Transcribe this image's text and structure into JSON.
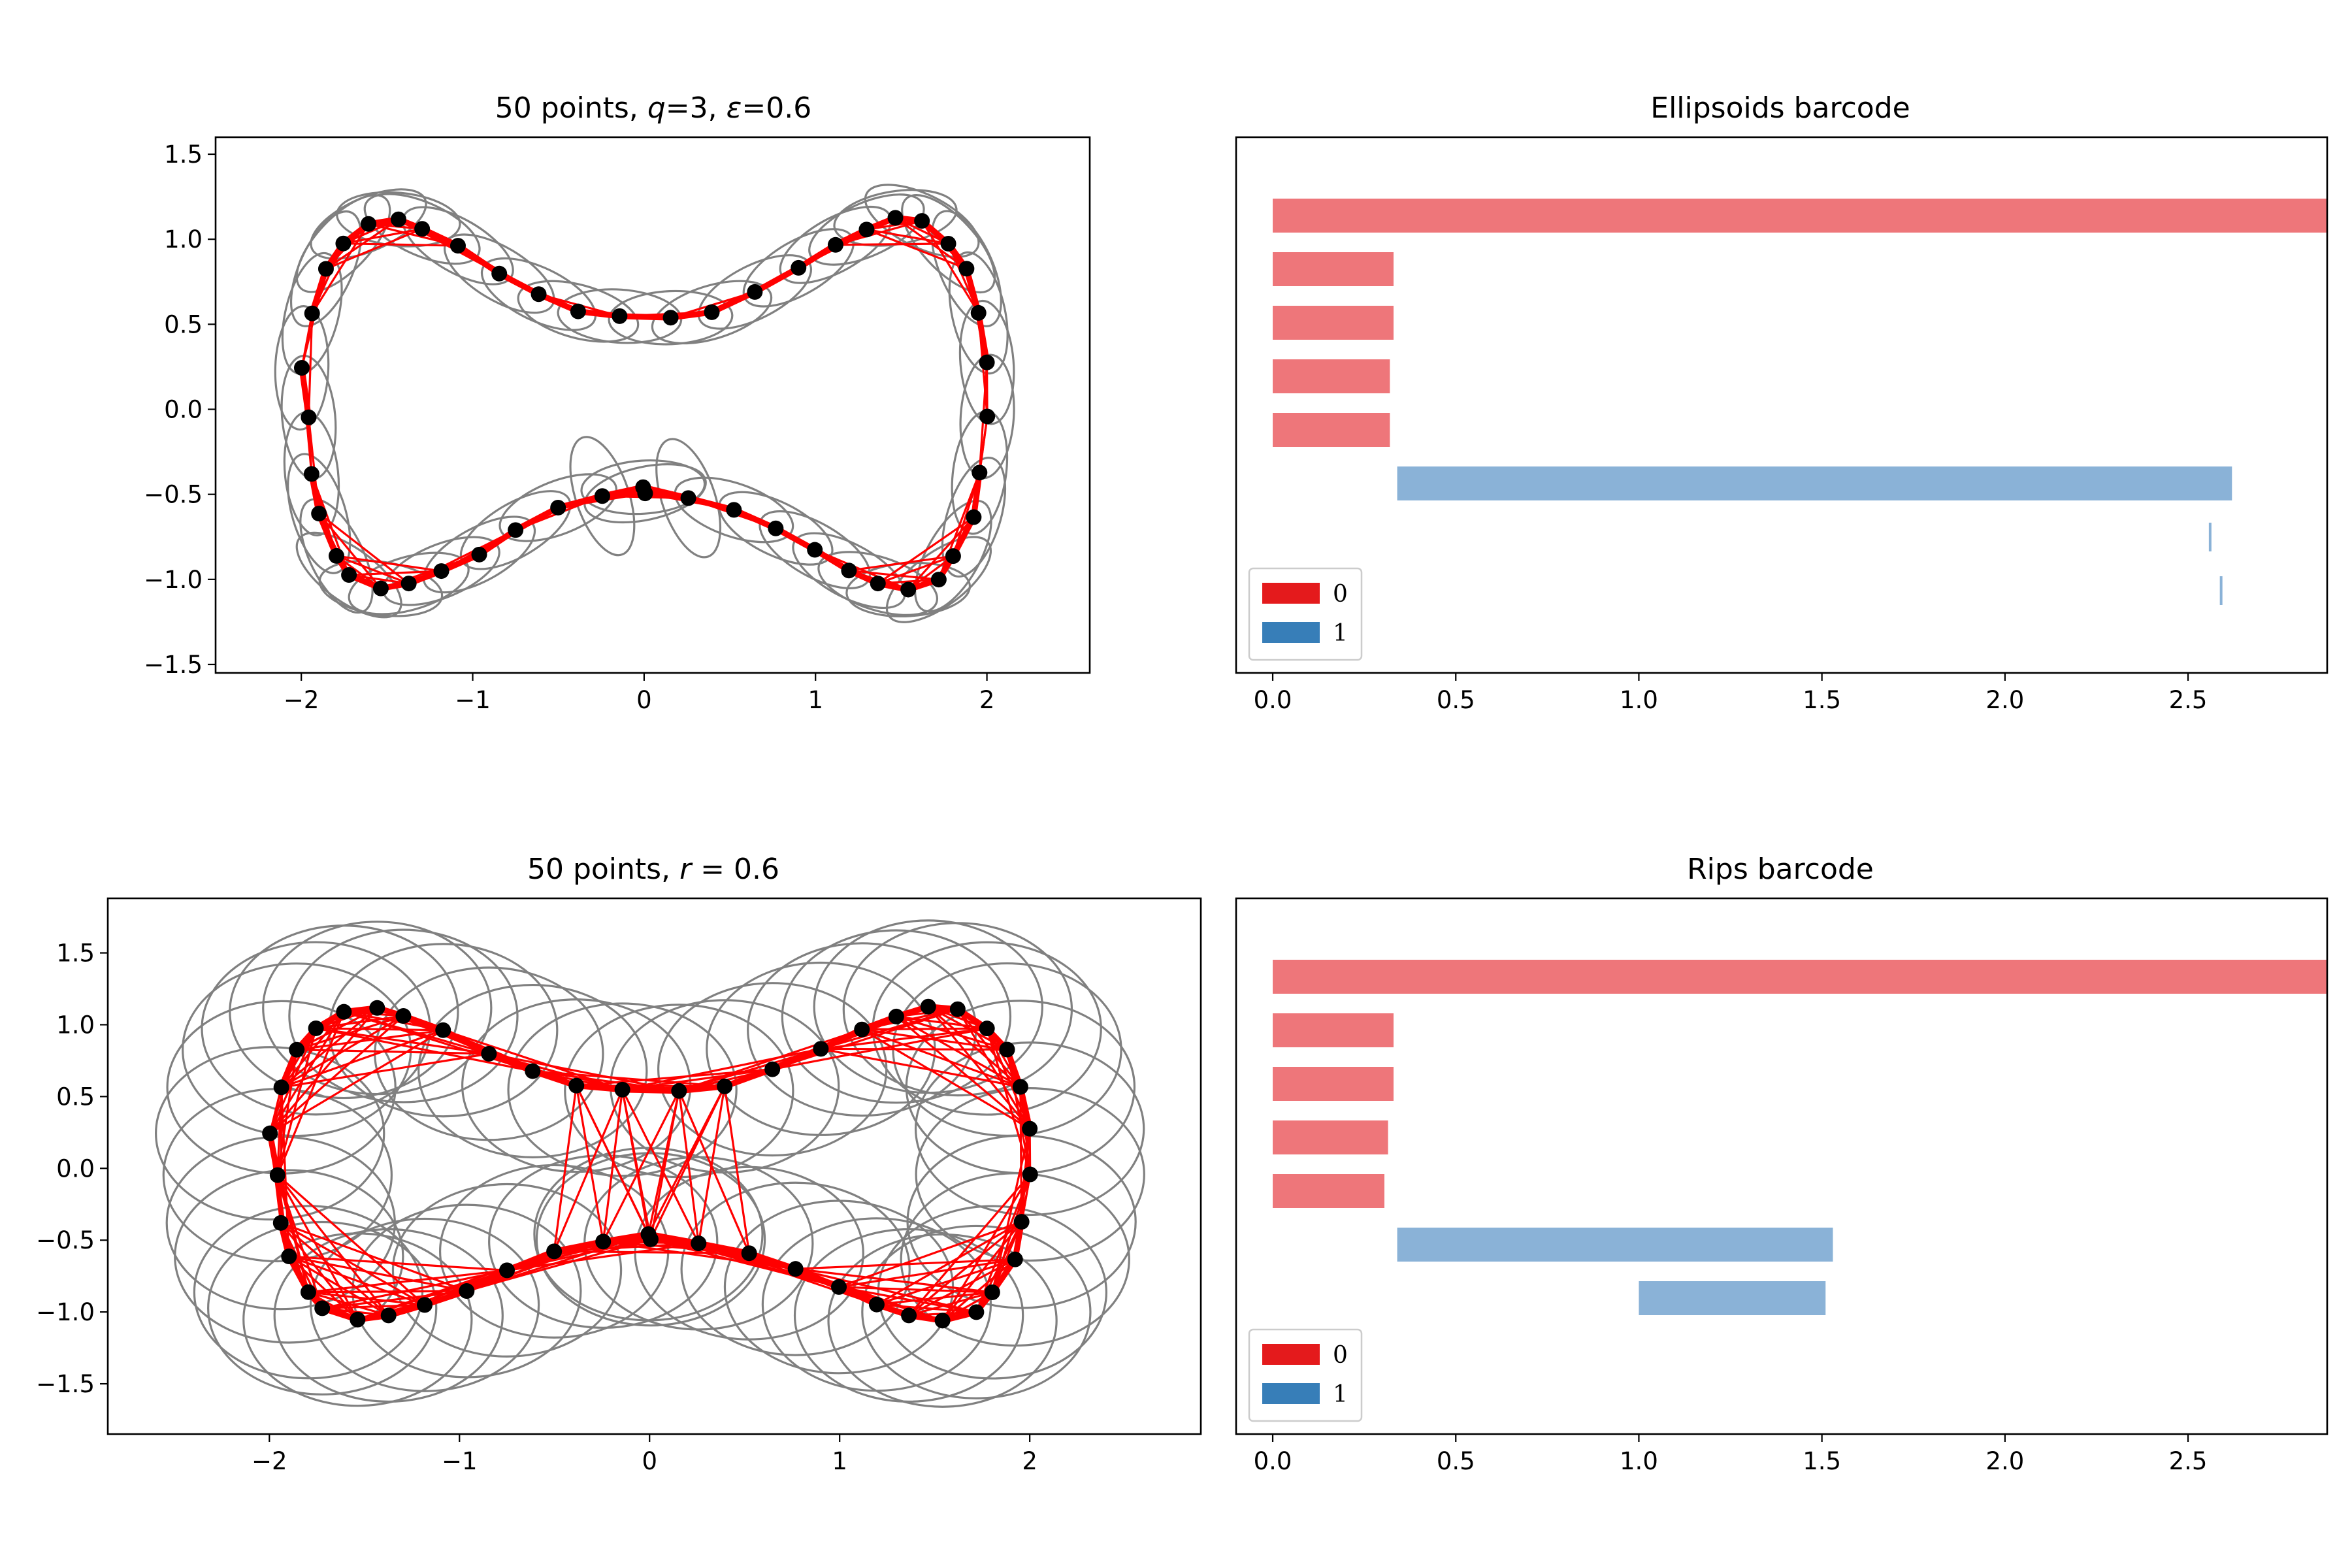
{
  "colors": {
    "ellipse": "#808080",
    "edge": "#ff0000",
    "point": "#000000",
    "bar0": "#ee767a",
    "bar1": "#8ab2d7",
    "legend0": "#e41a1c",
    "legend1": "#377eb8"
  },
  "points": [
    [
      -1.997,
      0.244
    ],
    [
      -1.957,
      -0.047
    ],
    [
      -1.937,
      0.564
    ],
    [
      -1.94,
      -0.38
    ],
    [
      -1.897,
      -0.613
    ],
    [
      -1.856,
      0.826
    ],
    [
      -1.795,
      -0.862
    ],
    [
      -1.755,
      0.975
    ],
    [
      -1.722,
      -0.974
    ],
    [
      -1.608,
      1.09
    ],
    [
      -1.536,
      -1.053
    ],
    [
      -1.433,
      1.117
    ],
    [
      -1.373,
      -1.024
    ],
    [
      -1.295,
      1.061
    ],
    [
      -1.183,
      -0.951
    ],
    [
      -1.086,
      0.962
    ],
    [
      -0.962,
      -0.854
    ],
    [
      -0.845,
      0.798
    ],
    [
      -0.75,
      -0.71
    ],
    [
      -0.615,
      0.677
    ],
    [
      -0.502,
      -0.578
    ],
    [
      -0.385,
      0.576
    ],
    [
      -0.244,
      -0.51
    ],
    [
      -0.143,
      0.548
    ],
    [
      -0.006,
      -0.458
    ],
    [
      0.006,
      -0.494
    ],
    [
      0.155,
      0.539
    ],
    [
      0.258,
      -0.522
    ],
    [
      0.395,
      0.571
    ],
    [
      0.524,
      -0.591
    ],
    [
      0.646,
      0.69
    ],
    [
      0.768,
      -0.7
    ],
    [
      0.901,
      0.832
    ],
    [
      0.996,
      -0.826
    ],
    [
      1.117,
      0.967
    ],
    [
      1.195,
      -0.948
    ],
    [
      1.298,
      1.057
    ],
    [
      1.364,
      -1.024
    ],
    [
      1.466,
      1.126
    ],
    [
      1.541,
      -1.06
    ],
    [
      1.621,
      1.108
    ],
    [
      1.719,
      -1.001
    ],
    [
      1.775,
      0.974
    ],
    [
      1.803,
      -0.863
    ],
    [
      1.881,
      0.827
    ],
    [
      1.923,
      -0.634
    ],
    [
      1.951,
      0.567
    ],
    [
      1.957,
      -0.372
    ],
    [
      2.0,
      0.276
    ],
    [
      2.002,
      -0.042
    ]
  ],
  "panels": [
    {
      "type": "scatter",
      "title_pre": "50 points, ",
      "title_math1": "q",
      "title_mid": "=3, ",
      "title_math2": "ε",
      "title_post": "=0.6",
      "kind": "ellipsoids",
      "xlim": [
        -2.5,
        2.6
      ],
      "ylim": [
        -1.55,
        1.6
      ],
      "xticks": [
        -2,
        -1,
        0,
        1,
        2
      ],
      "xticklabels": [
        "−2",
        "−1",
        "0",
        "1",
        "2"
      ],
      "yticks": [
        -1.5,
        -1.0,
        -0.5,
        0.0,
        0.5,
        1.0,
        1.5
      ],
      "yticklabels": [
        "−1.5",
        "−1.0",
        "−0.5",
        "0.0",
        "0.5",
        "1.0",
        "1.5"
      ],
      "ellipse_a": 0.36,
      "ellipse_b": 0.12,
      "edge_threshold": 0.72
    },
    {
      "type": "barcode",
      "title": "Ellipsoids barcode",
      "xlim": [
        -0.1,
        2.88
      ],
      "xticks": [
        0.0,
        0.5,
        1.0,
        1.5,
        2.0,
        2.5
      ],
      "xticklabels": [
        "0.0",
        "0.5",
        "1.0",
        "1.5",
        "2.0",
        "2.5"
      ],
      "bars": [
        {
          "dim": 0,
          "birth": 0.0,
          "death": 2.88,
          "thin": false
        },
        {
          "dim": 0,
          "birth": 0.0,
          "death": 0.33,
          "thin": false
        },
        {
          "dim": 0,
          "birth": 0.0,
          "death": 0.33,
          "thin": false
        },
        {
          "dim": 0,
          "birth": 0.0,
          "death": 0.32,
          "thin": false
        },
        {
          "dim": 0,
          "birth": 0.0,
          "death": 0.32,
          "thin": false
        },
        {
          "dim": 1,
          "birth": 0.34,
          "death": 2.62,
          "thin": false
        },
        {
          "dim": 1,
          "birth": 2.555,
          "death": 2.56,
          "thin": true
        },
        {
          "dim": 1,
          "birth": 2.585,
          "death": 2.59,
          "thin": true
        }
      ],
      "legend": [
        {
          "label": "0",
          "dim": 0
        },
        {
          "label": "1",
          "dim": 1
        }
      ]
    },
    {
      "type": "scatter",
      "title_pre": "50 points, ",
      "title_math1": "r",
      "title_mid": " = 0.6",
      "title_math2": "",
      "title_post": "",
      "kind": "rips",
      "xlim": [
        -2.85,
        2.9
      ],
      "ylim": [
        -1.85,
        1.88
      ],
      "xticks": [
        -2,
        -1,
        0,
        1,
        2
      ],
      "xticklabels": [
        "−2",
        "−1",
        "0",
        "1",
        "2"
      ],
      "yticks": [
        -1.5,
        -1.0,
        -0.5,
        0.0,
        0.5,
        1.0,
        1.5
      ],
      "yticklabels": [
        "−1.5",
        "−1.0",
        "−0.5",
        "0.0",
        "0.5",
        "1.0",
        "1.5"
      ],
      "radius": 0.6,
      "edge_threshold": 1.2
    },
    {
      "type": "barcode",
      "title": "Rips barcode",
      "xlim": [
        -0.1,
        2.88
      ],
      "xticks": [
        0.0,
        0.5,
        1.0,
        1.5,
        2.0,
        2.5
      ],
      "xticklabels": [
        "0.0",
        "0.5",
        "1.0",
        "1.5",
        "2.0",
        "2.5"
      ],
      "bars": [
        {
          "dim": 0,
          "birth": 0.0,
          "death": 2.88,
          "thin": false
        },
        {
          "dim": 0,
          "birth": 0.0,
          "death": 0.33,
          "thin": false
        },
        {
          "dim": 0,
          "birth": 0.0,
          "death": 0.33,
          "thin": false
        },
        {
          "dim": 0,
          "birth": 0.0,
          "death": 0.315,
          "thin": false
        },
        {
          "dim": 0,
          "birth": 0.0,
          "death": 0.305,
          "thin": false
        },
        {
          "dim": 1,
          "birth": 0.34,
          "death": 1.53,
          "thin": false
        },
        {
          "dim": 1,
          "birth": 1.0,
          "death": 1.51,
          "thin": false
        }
      ],
      "legend": [
        {
          "label": "0",
          "dim": 0
        },
        {
          "label": "1",
          "dim": 1
        }
      ]
    }
  ]
}
